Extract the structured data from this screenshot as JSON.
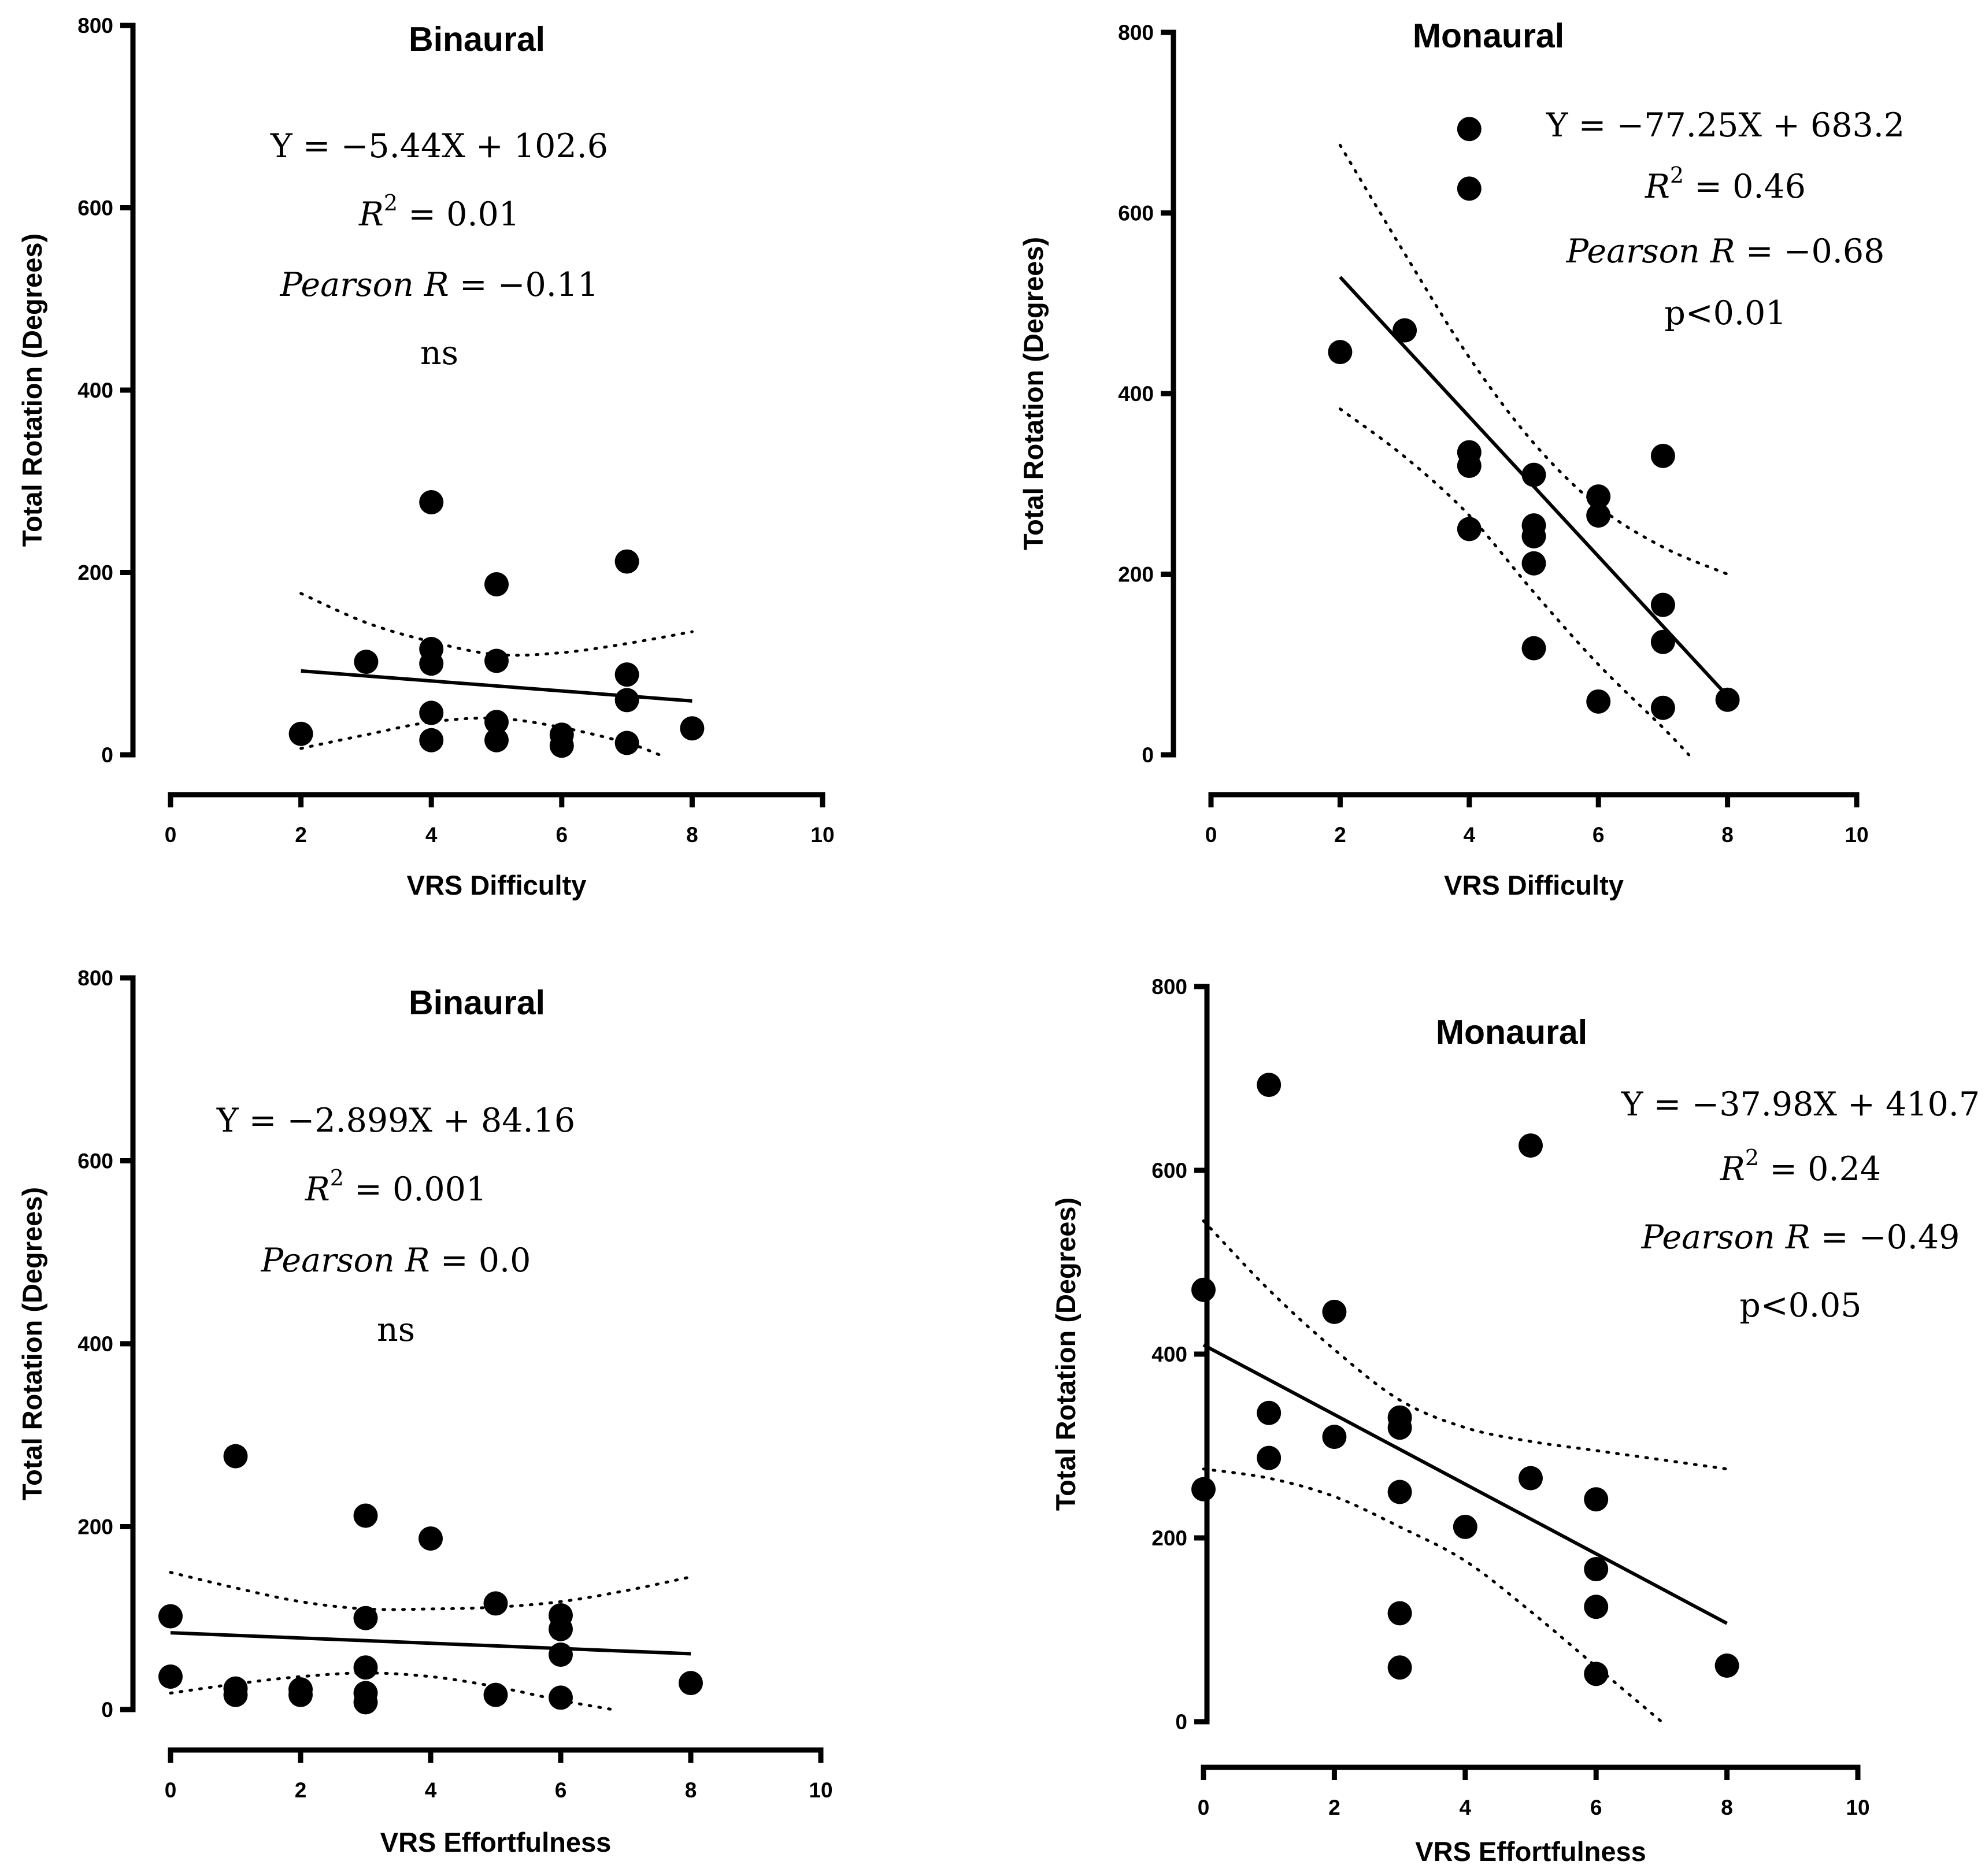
{
  "chart_data": [
    {
      "type": "scatter",
      "title": "Binaural",
      "xlabel": "VRS Difficulty",
      "ylabel": "Total Rotation (Degrees)",
      "xlim": [
        0,
        10
      ],
      "ylim": [
        0,
        800
      ],
      "xticks": [
        "0",
        "2",
        "4",
        "6",
        "8",
        "10"
      ],
      "yticks": [
        "0",
        "200",
        "400",
        "600",
        "800"
      ],
      "points": [
        {
          "x": 2,
          "y": 23
        },
        {
          "x": 3,
          "y": 102
        },
        {
          "x": 4,
          "y": 277
        },
        {
          "x": 4,
          "y": 116
        },
        {
          "x": 4,
          "y": 100
        },
        {
          "x": 4,
          "y": 46
        },
        {
          "x": 4,
          "y": 16
        },
        {
          "x": 5,
          "y": 187
        },
        {
          "x": 5,
          "y": 103
        },
        {
          "x": 5,
          "y": 36
        },
        {
          "x": 5,
          "y": 16
        },
        {
          "x": 6,
          "y": 22
        },
        {
          "x": 6,
          "y": 10
        },
        {
          "x": 7,
          "y": 212
        },
        {
          "x": 7,
          "y": 88
        },
        {
          "x": 7,
          "y": 60
        },
        {
          "x": 7,
          "y": 13
        },
        {
          "x": 8,
          "y": 29
        }
      ],
      "fit": {
        "x": [
          2,
          8
        ],
        "y": [
          92,
          59
        ]
      },
      "ci_upper": {
        "x": [
          2,
          3,
          4,
          5,
          6,
          7,
          8
        ],
        "y": [
          177,
          145,
          124,
          110,
          112,
          122,
          135
        ]
      },
      "ci_lower": {
        "x": [
          2,
          3,
          4,
          5,
          6,
          7,
          7.5
        ],
        "y": [
          7,
          22,
          36,
          40,
          30,
          13,
          0
        ]
      },
      "stats": {
        "equation": "Y = −5.44X + 102.6",
        "r2_symbol": "R",
        "r2_exp": "2",
        "r2_value": " = 0.01",
        "pearson_label": "Pearson R",
        "pearson_value": " = −0.11",
        "significance": "ns"
      }
    },
    {
      "type": "scatter",
      "title": "Monaural",
      "xlabel": "VRS Difficulty",
      "ylabel": "Total Rotation (Degrees)",
      "xlim": [
        0,
        10
      ],
      "ylim": [
        0,
        800
      ],
      "xticks": [
        "0",
        "2",
        "4",
        "6",
        "8",
        "10"
      ],
      "yticks": [
        "0",
        "200",
        "400",
        "600",
        "800"
      ],
      "points": [
        {
          "x": 2,
          "y": 446
        },
        {
          "x": 3,
          "y": 470
        },
        {
          "x": 4,
          "y": 693
        },
        {
          "x": 4,
          "y": 627
        },
        {
          "x": 4,
          "y": 335
        },
        {
          "x": 4,
          "y": 320
        },
        {
          "x": 4,
          "y": 250
        },
        {
          "x": 5,
          "y": 310
        },
        {
          "x": 5,
          "y": 254
        },
        {
          "x": 5,
          "y": 242
        },
        {
          "x": 5,
          "y": 212
        },
        {
          "x": 5,
          "y": 118
        },
        {
          "x": 6,
          "y": 286
        },
        {
          "x": 6,
          "y": 265
        },
        {
          "x": 6,
          "y": 59
        },
        {
          "x": 7,
          "y": 331
        },
        {
          "x": 7,
          "y": 166
        },
        {
          "x": 7,
          "y": 125
        },
        {
          "x": 7,
          "y": 52
        },
        {
          "x": 8,
          "y": 61
        }
      ],
      "fit": {
        "x": [
          2,
          8
        ],
        "y": [
          529,
          65
        ]
      },
      "ci_upper": {
        "x": [
          2,
          3,
          4,
          5,
          6,
          7,
          8
        ],
        "y": [
          675,
          555,
          440,
          345,
          275,
          230,
          200
        ]
      },
      "ci_lower": {
        "x": [
          2,
          3,
          4,
          5,
          6,
          7,
          7.4
        ],
        "y": [
          383,
          330,
          265,
          180,
          100,
          30,
          0
        ]
      },
      "stats": {
        "equation": "Y = −77.25X + 683.2",
        "r2_symbol": "R",
        "r2_exp": "2",
        "r2_value": " = 0.46",
        "pearson_label": "Pearson R",
        "pearson_value": " = −0.68",
        "significance": "p<0.01"
      }
    },
    {
      "type": "scatter",
      "title": "Binaural",
      "xlabel": "VRS Effortfulness",
      "ylabel": "Total Rotation (Degrees)",
      "xlim": [
        0,
        10
      ],
      "ylim": [
        0,
        800
      ],
      "xticks": [
        "0",
        "2",
        "4",
        "6",
        "8",
        "10"
      ],
      "yticks": [
        "0",
        "200",
        "400",
        "600",
        "800"
      ],
      "points": [
        {
          "x": 0,
          "y": 102
        },
        {
          "x": 0,
          "y": 36
        },
        {
          "x": 1,
          "y": 277
        },
        {
          "x": 1,
          "y": 23
        },
        {
          "x": 1,
          "y": 16
        },
        {
          "x": 2,
          "y": 22
        },
        {
          "x": 2,
          "y": 16
        },
        {
          "x": 3,
          "y": 212
        },
        {
          "x": 3,
          "y": 100
        },
        {
          "x": 3,
          "y": 46
        },
        {
          "x": 3,
          "y": 18
        },
        {
          "x": 3,
          "y": 8
        },
        {
          "x": 4,
          "y": 187
        },
        {
          "x": 5,
          "y": 116
        },
        {
          "x": 5,
          "y": 16
        },
        {
          "x": 6,
          "y": 103
        },
        {
          "x": 6,
          "y": 88
        },
        {
          "x": 6,
          "y": 60
        },
        {
          "x": 6,
          "y": 13
        },
        {
          "x": 8,
          "y": 29
        }
      ],
      "fit": {
        "x": [
          0,
          8
        ],
        "y": [
          84,
          61
        ]
      },
      "ci_upper": {
        "x": [
          0,
          1,
          2,
          3,
          4,
          5,
          6,
          7,
          8
        ],
        "y": [
          150,
          133,
          118,
          110,
          110,
          112,
          118,
          130,
          145
        ]
      },
      "ci_lower": {
        "x": [
          0,
          1,
          2,
          3,
          4,
          5,
          6,
          6.8
        ],
        "y": [
          18,
          28,
          36,
          40,
          36,
          25,
          10,
          0
        ]
      },
      "stats": {
        "equation": "Y = −2.899X + 84.16",
        "r2_symbol": "R",
        "r2_exp": "2",
        "r2_value": " = 0.001",
        "pearson_label": "Pearson R",
        "pearson_value": " = 0.0",
        "significance": "ns"
      }
    },
    {
      "type": "scatter",
      "title": "Monaural",
      "xlabel": "VRS Effortfulness",
      "ylabel": "Total Rotation (Degrees)",
      "xlim": [
        0,
        10
      ],
      "ylim": [
        0,
        800
      ],
      "xticks": [
        "0",
        "2",
        "4",
        "6",
        "8",
        "10"
      ],
      "yticks": [
        "0",
        "200",
        "400",
        "600",
        "800"
      ],
      "points": [
        {
          "x": 0,
          "y": 470
        },
        {
          "x": 0,
          "y": 253
        },
        {
          "x": 1,
          "y": 693
        },
        {
          "x": 1,
          "y": 336
        },
        {
          "x": 1,
          "y": 287
        },
        {
          "x": 2,
          "y": 446
        },
        {
          "x": 2,
          "y": 310
        },
        {
          "x": 3,
          "y": 331
        },
        {
          "x": 3,
          "y": 320
        },
        {
          "x": 3,
          "y": 250
        },
        {
          "x": 3,
          "y": 118
        },
        {
          "x": 3,
          "y": 59
        },
        {
          "x": 4,
          "y": 212
        },
        {
          "x": 5,
          "y": 627
        },
        {
          "x": 5,
          "y": 265
        },
        {
          "x": 6,
          "y": 242
        },
        {
          "x": 6,
          "y": 166
        },
        {
          "x": 6,
          "y": 125
        },
        {
          "x": 6,
          "y": 52
        },
        {
          "x": 8,
          "y": 61
        }
      ],
      "fit": {
        "x": [
          0,
          8
        ],
        "y": [
          410,
          107
        ]
      },
      "ci_upper": {
        "x": [
          0,
          1,
          2,
          3,
          4,
          5,
          6,
          7,
          8
        ],
        "y": [
          545,
          470,
          405,
          350,
          320,
          305,
          295,
          285,
          275
        ]
      },
      "ci_lower": {
        "x": [
          0,
          1,
          2,
          3,
          4,
          5,
          6,
          7
        ],
        "y": [
          275,
          265,
          245,
          212,
          175,
          120,
          60,
          0
        ]
      },
      "stats": {
        "equation": "Y = −37.98X + 410.7",
        "r2_symbol": "R",
        "r2_exp": "2",
        "r2_value": " = 0.24",
        "pearson_label": "Pearson R",
        "pearson_value": " = −0.49",
        "significance": "p<0.05"
      }
    }
  ]
}
